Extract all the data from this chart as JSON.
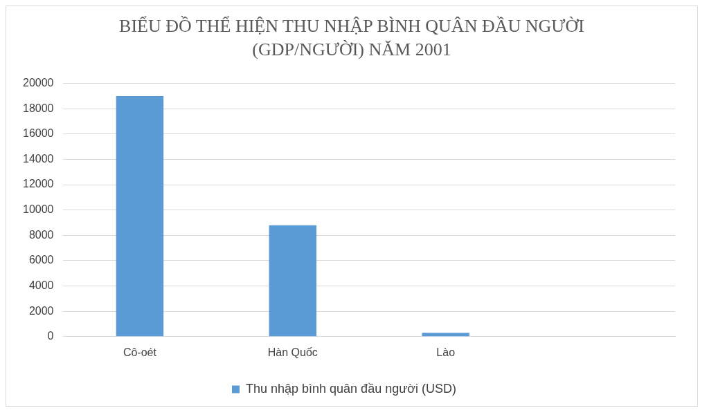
{
  "chart_data": {
    "type": "bar",
    "title": "BIỂU ĐỒ THỂ HIỆN THU NHẬP BÌNH QUÂN ĐẦU NGƯỜI (GDP/NGƯỜI) NĂM 2001",
    "categories": [
      "Cô-oét",
      "Hàn Quốc",
      "Lào",
      null
    ],
    "series": [
      {
        "name": "Thu nhập bình quân đầu người (USD)",
        "color": "#5b9bd5",
        "values": [
          19000,
          8800,
          300,
          null
        ]
      }
    ],
    "ylim": [
      0,
      20000
    ],
    "yticks": [
      0,
      2000,
      4000,
      6000,
      8000,
      10000,
      12000,
      14000,
      16000,
      18000,
      20000
    ],
    "grid": "y",
    "legend": "bottom"
  }
}
